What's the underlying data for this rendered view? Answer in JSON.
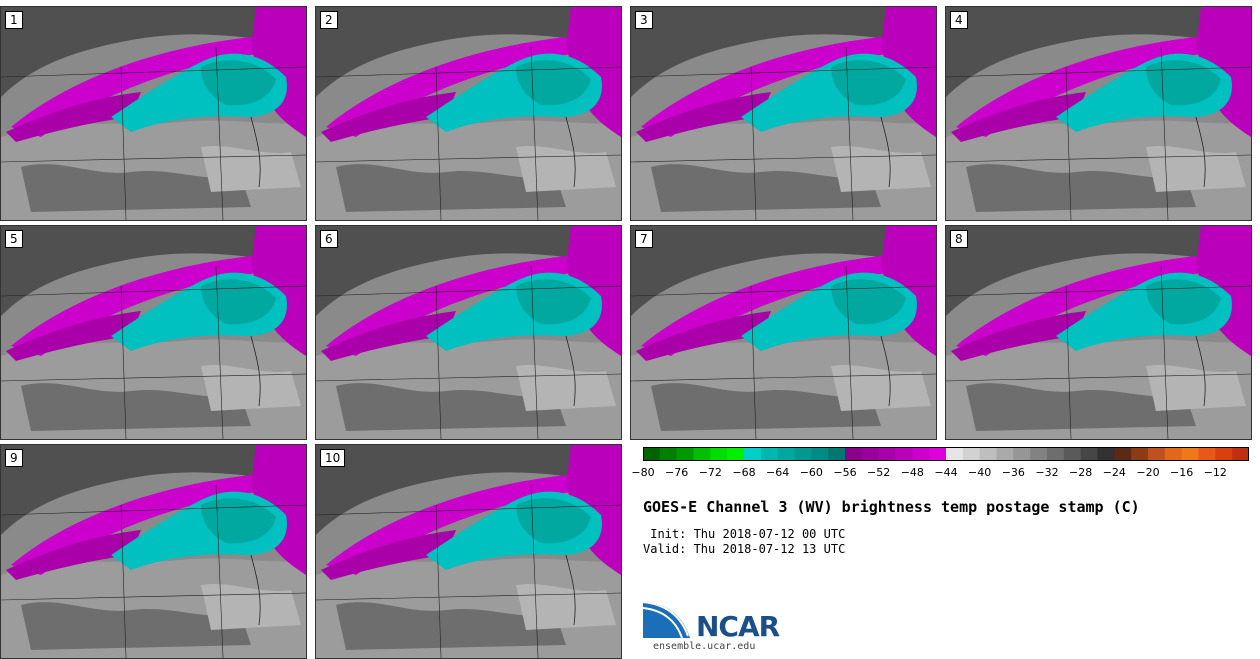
{
  "panels": [
    {
      "number": "1"
    },
    {
      "number": "2"
    },
    {
      "number": "3"
    },
    {
      "number": "4"
    },
    {
      "number": "5"
    },
    {
      "number": "6"
    },
    {
      "number": "7"
    },
    {
      "number": "8"
    },
    {
      "number": "9"
    },
    {
      "number": "10"
    }
  ],
  "colorbar": {
    "tick_labels": [
      "−80",
      "−76",
      "−72",
      "−68",
      "−64",
      "−60",
      "−56",
      "−52",
      "−48",
      "−44",
      "−40",
      "−36",
      "−32",
      "−28",
      "−24",
      "−20",
      "−16",
      "−12"
    ],
    "colors": [
      "#006400",
      "#008000",
      "#009a00",
      "#00c000",
      "#00dd00",
      "#00f000",
      "#00d0c8",
      "#00b8b0",
      "#00a8a0",
      "#009890",
      "#008c86",
      "#007870",
      "#8b008b",
      "#9a009a",
      "#aa00aa",
      "#bb00bb",
      "#cc00cc",
      "#dd00dd",
      "#e6e6e6",
      "#d2d2d2",
      "#bebebe",
      "#aaaaaa",
      "#969696",
      "#828282",
      "#6e6e6e",
      "#5a5a5a",
      "#464646",
      "#323232",
      "#5a2a14",
      "#8c3c14",
      "#c05020",
      "#e06818",
      "#f07818",
      "#e85818",
      "#d84010",
      "#c03010"
    ]
  },
  "title": "GOES-E Channel 3 (WV) brightness temp postage stamp (C)",
  "init": " Init: Thu 2018-07-12 00 UTC",
  "valid": "Valid: Thu 2018-07-12 13 UTC",
  "logo_text": "NCAR",
  "url": "ensemble.ucar.edu"
}
